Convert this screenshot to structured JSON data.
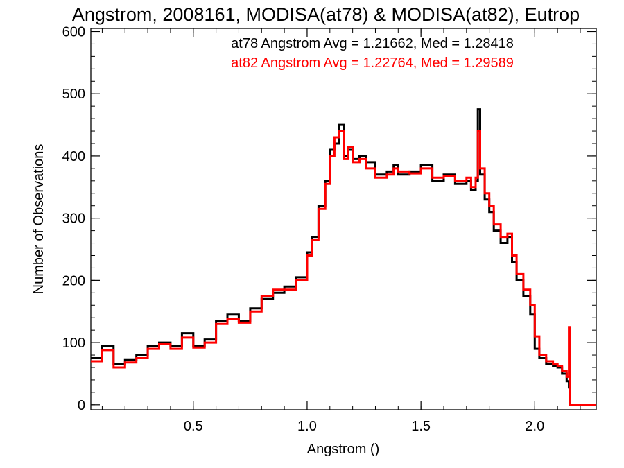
{
  "chart_data": {
    "type": "line",
    "title": "Angstrom, 2008161, MODISA(at78) & MODISA(at82), Eutrop",
    "xlabel": "Angstrom ()",
    "ylabel": "Number of Observations",
    "xlim": [
      0.05,
      2.27
    ],
    "ylim": [
      -8,
      605
    ],
    "x_ticks": [
      {
        "value": 0.5,
        "label": "0.5"
      },
      {
        "value": 1.0,
        "label": "1.0"
      },
      {
        "value": 1.5,
        "label": "1.5"
      },
      {
        "value": 2.0,
        "label": "2.0"
      }
    ],
    "y_ticks": [
      {
        "value": 0,
        "label": "0"
      },
      {
        "value": 100,
        "label": "100"
      },
      {
        "value": 200,
        "label": "200"
      },
      {
        "value": 300,
        "label": "300"
      },
      {
        "value": 400,
        "label": "400"
      },
      {
        "value": 500,
        "label": "500"
      },
      {
        "value": 600,
        "label": "600"
      }
    ],
    "grid": false,
    "step": "histogram",
    "annotations": [
      {
        "text": "at78 Angstrom Avg = 1.21662, Med = 1.28418",
        "color": "#000000"
      },
      {
        "text": "at82 Angstrom Avg = 1.22764, Med = 1.29589",
        "color": "#ff0000"
      }
    ],
    "series": [
      {
        "color": "#000000",
        "x": [
          0.05,
          0.1,
          0.15,
          0.2,
          0.25,
          0.3,
          0.35,
          0.4,
          0.45,
          0.5,
          0.55,
          0.6,
          0.65,
          0.7,
          0.75,
          0.8,
          0.85,
          0.9,
          0.95,
          1.0,
          1.02,
          1.05,
          1.08,
          1.1,
          1.12,
          1.14,
          1.16,
          1.18,
          1.2,
          1.23,
          1.26,
          1.3,
          1.35,
          1.38,
          1.4,
          1.45,
          1.5,
          1.55,
          1.6,
          1.65,
          1.7,
          1.72,
          1.74,
          1.75,
          1.76,
          1.78,
          1.8,
          1.82,
          1.85,
          1.88,
          1.9,
          1.92,
          1.95,
          1.98,
          2.0,
          2.02,
          2.05,
          2.08,
          2.1,
          2.12,
          2.14,
          2.15,
          2.155,
          2.17,
          2.27
        ],
        "values": [
          75,
          95,
          65,
          72,
          80,
          95,
          100,
          95,
          115,
          95,
          105,
          135,
          145,
          135,
          155,
          170,
          180,
          190,
          205,
          245,
          270,
          320,
          360,
          410,
          420,
          450,
          400,
          410,
          395,
          400,
          390,
          370,
          375,
          385,
          370,
          375,
          385,
          360,
          370,
          355,
          360,
          345,
          360,
          475,
          370,
          330,
          310,
          280,
          260,
          270,
          230,
          200,
          175,
          145,
          90,
          75,
          65,
          62,
          60,
          50,
          38,
          28,
          0,
          0,
          0
        ]
      },
      {
        "color": "#ff0000",
        "x": [
          0.05,
          0.1,
          0.15,
          0.2,
          0.25,
          0.3,
          0.35,
          0.4,
          0.45,
          0.5,
          0.55,
          0.6,
          0.65,
          0.7,
          0.75,
          0.8,
          0.85,
          0.9,
          0.95,
          1.0,
          1.02,
          1.05,
          1.08,
          1.1,
          1.12,
          1.14,
          1.16,
          1.18,
          1.2,
          1.23,
          1.26,
          1.3,
          1.35,
          1.38,
          1.4,
          1.45,
          1.5,
          1.55,
          1.6,
          1.65,
          1.7,
          1.72,
          1.74,
          1.75,
          1.76,
          1.78,
          1.8,
          1.82,
          1.85,
          1.88,
          1.9,
          1.92,
          1.95,
          1.98,
          2.0,
          2.02,
          2.05,
          2.08,
          2.1,
          2.12,
          2.14,
          2.15,
          2.155,
          2.17,
          2.27
        ],
        "values": [
          70,
          88,
          60,
          68,
          75,
          90,
          98,
          90,
          108,
          92,
          100,
          130,
          138,
          132,
          150,
          175,
          185,
          185,
          200,
          240,
          265,
          315,
          355,
          400,
          430,
          440,
          395,
          415,
          390,
          395,
          380,
          365,
          370,
          380,
          375,
          372,
          380,
          365,
          368,
          360,
          365,
          350,
          365,
          440,
          380,
          340,
          320,
          290,
          270,
          275,
          240,
          210,
          185,
          160,
          110,
          80,
          70,
          65,
          62,
          55,
          45,
          125,
          0,
          0,
          0
        ]
      }
    ]
  }
}
